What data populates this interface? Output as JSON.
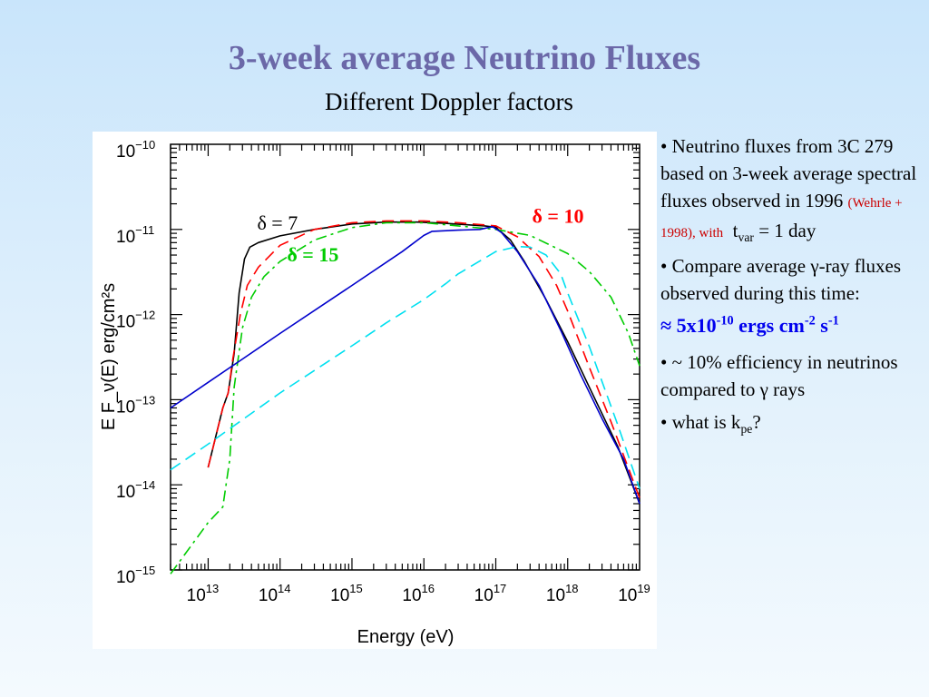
{
  "slide": {
    "title": "3-week average Neutrino Fluxes",
    "subtitle": "Different Doppler factors"
  },
  "bullets": {
    "b1_text": "• Neutrino fluxes from 3C 279  based on 3-week average spectral fluxes observed in 1996 ",
    "b1_cite": "(Wehrle + 1998), with",
    "b1_tvar_t": "t",
    "b1_tvar_sub": "var",
    "b1_tvar_val": " = 1 day",
    "b2_text": "• Compare average γ-ray fluxes observed during this time:",
    "flux_prefix": "≈ 5x10",
    "flux_exp1": "-10",
    "flux_mid": " ergs cm",
    "flux_exp2": "-2",
    "flux_s": " s",
    "flux_exp3": "-1",
    "b3_text": "• ~ 10% efficiency in neutrinos compared to γ rays",
    "b4_text": "• what is k",
    "b4_sub": "pe",
    "b4_end": "?"
  },
  "chart_data": {
    "type": "line",
    "xlabel": "Energy   (eV)",
    "ylabel": "E F_ν(E)   erg/cm²s",
    "x_scale": "log",
    "y_scale": "log",
    "xlim": [
      3000000000000.0,
      1e+19
    ],
    "ylim": [
      1e-15,
      1e-10
    ],
    "grid": false,
    "x_ticks": [
      {
        "value": 10000000000000.0,
        "base": "10",
        "exp": "13"
      },
      {
        "value": 100000000000000.0,
        "base": "10",
        "exp": "14"
      },
      {
        "value": 1000000000000000.0,
        "base": "10",
        "exp": "15"
      },
      {
        "value": 1e+16,
        "base": "10",
        "exp": "16"
      },
      {
        "value": 1e+17,
        "base": "10",
        "exp": "17"
      },
      {
        "value": 1e+18,
        "base": "10",
        "exp": "18"
      },
      {
        "value": 1e+19,
        "base": "10",
        "exp": "19"
      }
    ],
    "y_ticks": [
      {
        "value": 1e-10,
        "base": "10",
        "exp": "−10"
      },
      {
        "value": 1e-11,
        "base": "10",
        "exp": "−11"
      },
      {
        "value": 1e-12,
        "base": "10",
        "exp": "−12"
      },
      {
        "value": 1e-13,
        "base": "10",
        "exp": "−13"
      },
      {
        "value": 1e-14,
        "base": "10",
        "exp": "−14"
      },
      {
        "value": 1e-15,
        "base": "10",
        "exp": "−15"
      }
    ],
    "series": [
      {
        "name": "δ = 7",
        "color": "#000000",
        "style": "solid",
        "points": [
          [
            10000000000000.0,
            1.6e-14
          ],
          [
            16000000000000.0,
            8e-14
          ],
          [
            19000000000000.0,
            1.2e-13
          ],
          [
            23000000000000.0,
            3.5e-13
          ],
          [
            27000000000000.0,
            1.8e-12
          ],
          [
            32000000000000.0,
            4.5e-12
          ],
          [
            38000000000000.0,
            6.2e-12
          ],
          [
            50000000000000.0,
            7e-12
          ],
          [
            100000000000000.0,
            8.4e-12
          ],
          [
            300000000000000.0,
            1e-11
          ],
          [
            1000000000000000.0,
            1.16e-11
          ],
          [
            3000000000000000.0,
            1.22e-11
          ],
          [
            8000000000000000.0,
            1.22e-11
          ],
          [
            2e+16,
            1.18e-11
          ],
          [
            5e+16,
            1.12e-11
          ],
          [
            7e+16,
            1.1e-11
          ],
          [
            1e+17,
            1.06e-11
          ],
          [
            1.6e+17,
            7.5e-12
          ],
          [
            2.5e+17,
            4.2e-12
          ],
          [
            5e+17,
            1.5e-12
          ],
          [
            1e+18,
            4.8e-13
          ],
          [
            2e+18,
            1.4e-13
          ],
          [
            5e+18,
            2.8e-14
          ],
          [
            1e+19,
            6e-15
          ]
        ]
      },
      {
        "name": "δ = 10",
        "color": "#ff0000",
        "style": "dashed",
        "points": [
          [
            10000000000000.0,
            1.6e-14
          ],
          [
            16000000000000.0,
            8e-14
          ],
          [
            19000000000000.0,
            1.2e-13
          ],
          [
            22000000000000.0,
            3e-13
          ],
          [
            28000000000000.0,
            1e-12
          ],
          [
            35000000000000.0,
            2.2e-12
          ],
          [
            50000000000000.0,
            3.6e-12
          ],
          [
            100000000000000.0,
            6.5e-12
          ],
          [
            300000000000000.0,
            1e-11
          ],
          [
            1000000000000000.0,
            1.2e-11
          ],
          [
            3000000000000000.0,
            1.26e-11
          ],
          [
            1e+16,
            1.26e-11
          ],
          [
            3e+16,
            1.2e-11
          ],
          [
            1e+17,
            1.1e-11
          ],
          [
            2e+17,
            8.2e-12
          ],
          [
            4e+17,
            4.8e-12
          ],
          [
            7e+17,
            2.2e-12
          ],
          [
            1e+18,
            1.1e-12
          ],
          [
            2e+18,
            2.4e-13
          ],
          [
            4e+18,
            5.5e-14
          ],
          [
            1e+19,
            7e-15
          ]
        ]
      },
      {
        "name": "δ = 15",
        "color": "#00cc00",
        "style": "dashdot",
        "points": [
          [
            3000000000000.0,
            9e-16
          ],
          [
            10000000000000.0,
            3.6e-15
          ],
          [
            16000000000000.0,
            5.5e-15
          ],
          [
            20000000000000.0,
            2e-14
          ],
          [
            23000000000000.0,
            1.4e-13
          ],
          [
            30000000000000.0,
            7e-13
          ],
          [
            40000000000000.0,
            1.6e-12
          ],
          [
            60000000000000.0,
            2.8e-12
          ],
          [
            100000000000000.0,
            4.2e-12
          ],
          [
            300000000000000.0,
            7.5e-12
          ],
          [
            1000000000000000.0,
            1.05e-11
          ],
          [
            3000000000000000.0,
            1.2e-11
          ],
          [
            1e+16,
            1.2e-11
          ],
          [
            3e+16,
            1.1e-11
          ],
          [
            1e+17,
            1e-11
          ],
          [
            3e+17,
            8.5e-12
          ],
          [
            1e+18,
            5.2e-12
          ],
          [
            2e+18,
            3.2e-12
          ],
          [
            4e+18,
            1.6e-12
          ],
          [
            7e+18,
            6e-13
          ],
          [
            1e+19,
            2.5e-13
          ]
        ]
      },
      {
        "name": "",
        "color": "#0000cc",
        "style": "solid",
        "points": [
          [
            3000000000000.0,
            8e-14
          ],
          [
            10000000000000.0,
            1.6e-13
          ],
          [
            30000000000000.0,
            3e-13
          ],
          [
            100000000000000.0,
            6e-13
          ],
          [
            1000000000000000.0,
            2.2e-12
          ],
          [
            5000000000000000.0,
            5.5e-12
          ],
          [
            1e+16,
            8.5e-12
          ],
          [
            1.3e+16,
            9.5e-12
          ],
          [
            3e+16,
            9.8e-12
          ],
          [
            6e+16,
            1e-11
          ],
          [
            9e+16,
            1.08e-11
          ],
          [
            1.2e+17,
            9.2e-12
          ],
          [
            2e+17,
            5.5e-12
          ],
          [
            4e+17,
            2.2e-12
          ],
          [
            8e+17,
            6.5e-13
          ],
          [
            1.5e+18,
            2e-13
          ],
          [
            3e+18,
            6e-14
          ],
          [
            6e+18,
            2e-14
          ],
          [
            1e+19,
            6e-15
          ]
        ]
      },
      {
        "name": "",
        "color": "#00e0f0",
        "style": "dashed",
        "points": [
          [
            3000000000000.0,
            1.5e-14
          ],
          [
            10000000000000.0,
            3e-14
          ],
          [
            100000000000000.0,
            1.2e-13
          ],
          [
            1000000000000000.0,
            4.3e-13
          ],
          [
            3000000000000000.0,
            8e-13
          ],
          [
            1e+16,
            1.5e-12
          ],
          [
            2e+16,
            2.3e-12
          ],
          [
            3e+16,
            3e-12
          ],
          [
            1e+17,
            5.5e-12
          ],
          [
            2e+17,
            6.3e-12
          ],
          [
            3e+17,
            6.2e-12
          ],
          [
            5e+17,
            5e-12
          ],
          [
            8e+17,
            3e-12
          ],
          [
            1e+18,
            1.8e-12
          ],
          [
            2e+18,
            4.2e-13
          ],
          [
            5e+18,
            5e-14
          ],
          [
            1e+19,
            9e-15
          ]
        ]
      }
    ],
    "annotations": [
      {
        "text": "δ = 7",
        "color": "#000000",
        "x": 48000000000000.0,
        "y": 1e-11
      },
      {
        "text": "δ = 10",
        "color": "#ff0000",
        "x": 3.2e+17,
        "y": 1.2e-11
      },
      {
        "text": "δ = 15",
        "color": "#00cc00",
        "x": 125000000000000.0,
        "y": 4.2e-12
      }
    ]
  }
}
